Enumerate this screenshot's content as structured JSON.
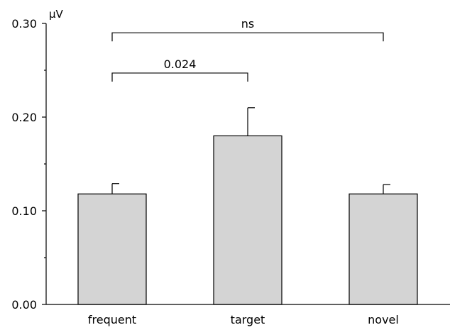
{
  "chart_data": {
    "type": "bar",
    "categories": [
      "frequent",
      "target",
      "novel"
    ],
    "values": [
      0.118,
      0.18,
      0.118
    ],
    "errors": [
      0.011,
      0.03,
      0.01
    ],
    "ylabel": "µV",
    "ylim": [
      0,
      0.3
    ],
    "yticks": [
      0.0,
      0.1,
      0.2,
      0.3
    ],
    "yticks_minor": [
      0.05,
      0.15,
      0.25
    ],
    "ytick_labels": [
      "0.00",
      "0.10",
      "0.20",
      "0.30"
    ],
    "grid": false,
    "bar_color": "#d4d4d4",
    "annotations": [
      {
        "from": "frequent",
        "to": "target",
        "text": "0.024",
        "y": 0.247
      },
      {
        "from": "frequent",
        "to": "novel",
        "text": "ns",
        "y": 0.29
      }
    ]
  }
}
